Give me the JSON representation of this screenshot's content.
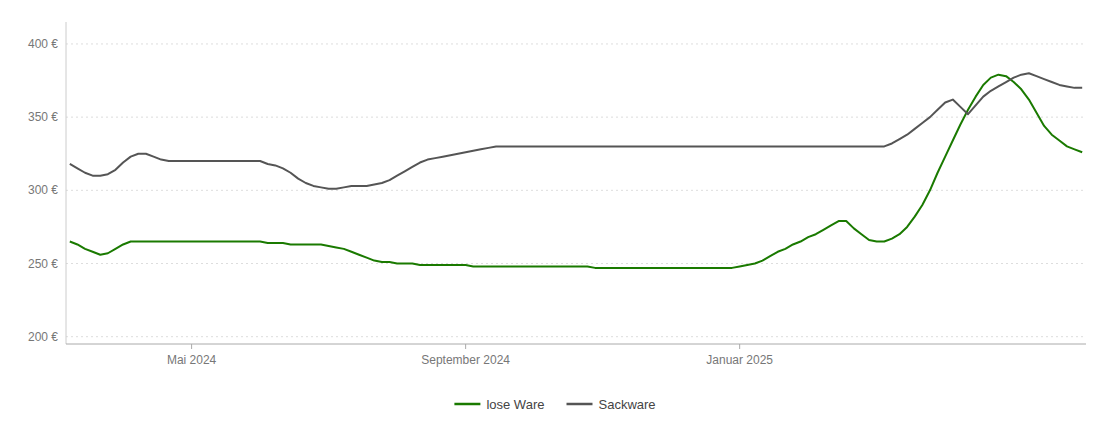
{
  "chart_data": {
    "type": "line",
    "categories": [
      null,
      null,
      null,
      null,
      null,
      null,
      null,
      null,
      null,
      null,
      null,
      null,
      null,
      null,
      null,
      null,
      "Mai 2024",
      null,
      null,
      null,
      null,
      null,
      null,
      null,
      null,
      null,
      null,
      null,
      null,
      null,
      null,
      null,
      null,
      null,
      null,
      null,
      null,
      null,
      null,
      null,
      null,
      null,
      null,
      null,
      null,
      null,
      null,
      null,
      null,
      null,
      null,
      null,
      "September 2024",
      null,
      null,
      null,
      null,
      null,
      null,
      null,
      null,
      null,
      null,
      null,
      null,
      null,
      null,
      null,
      null,
      null,
      null,
      null,
      null,
      null,
      null,
      null,
      null,
      null,
      null,
      null,
      null,
      null,
      null,
      null,
      null,
      null,
      null,
      null,
      "Januar 2025",
      null,
      null,
      null,
      null,
      null,
      null,
      null,
      null,
      null,
      null,
      null,
      null,
      null,
      null,
      null,
      null,
      null,
      null,
      null,
      null,
      null,
      null,
      null,
      null,
      null,
      null,
      null,
      null,
      null,
      null,
      null,
      null,
      null,
      null,
      null,
      null,
      null,
      null,
      null,
      null,
      null,
      null,
      null,
      null,
      null
    ],
    "series": [
      {
        "name": "lose Ware",
        "color": "#1a7a00",
        "values": [
          265,
          263,
          260,
          258,
          256,
          257,
          260,
          263,
          265,
          265,
          265,
          265,
          265,
          265,
          265,
          265,
          265,
          265,
          265,
          265,
          265,
          265,
          265,
          265,
          265,
          265,
          264,
          264,
          264,
          263,
          263,
          263,
          263,
          263,
          262,
          261,
          260,
          258,
          256,
          254,
          252,
          251,
          251,
          250,
          250,
          250,
          249,
          249,
          249,
          249,
          249,
          249,
          249,
          248,
          248,
          248,
          248,
          248,
          248,
          248,
          248,
          248,
          248,
          248,
          248,
          248,
          248,
          248,
          248,
          247,
          247,
          247,
          247,
          247,
          247,
          247,
          247,
          247,
          247,
          247,
          247,
          247,
          247,
          247,
          247,
          247,
          247,
          247,
          248,
          249,
          250,
          252,
          255,
          258,
          260,
          263,
          265,
          268,
          270,
          273,
          276,
          279,
          279,
          274,
          270,
          266,
          265,
          265,
          267,
          270,
          275,
          282,
          290,
          300,
          312,
          323,
          334,
          345,
          355,
          364,
          372,
          377,
          379,
          378,
          374,
          369,
          362,
          353,
          344,
          338,
          334,
          330,
          328,
          326
        ]
      },
      {
        "name": "Sackware",
        "color": "#555555",
        "values": [
          318,
          315,
          312,
          310,
          310,
          311,
          314,
          319,
          323,
          325,
          325,
          323,
          321,
          320,
          320,
          320,
          320,
          320,
          320,
          320,
          320,
          320,
          320,
          320,
          320,
          320,
          318,
          317,
          315,
          312,
          308,
          305,
          303,
          302,
          301,
          301,
          302,
          303,
          303,
          303,
          304,
          305,
          307,
          310,
          313,
          316,
          319,
          321,
          322,
          323,
          324,
          325,
          326,
          327,
          328,
          329,
          330,
          330,
          330,
          330,
          330,
          330,
          330,
          330,
          330,
          330,
          330,
          330,
          330,
          330,
          330,
          330,
          330,
          330,
          330,
          330,
          330,
          330,
          330,
          330,
          330,
          330,
          330,
          330,
          330,
          330,
          330,
          330,
          330,
          330,
          330,
          330,
          330,
          330,
          330,
          330,
          330,
          330,
          330,
          330,
          330,
          330,
          330,
          330,
          330,
          330,
          330,
          330,
          332,
          335,
          338,
          342,
          346,
          350,
          355,
          360,
          362,
          357,
          352,
          358,
          364,
          368,
          371,
          374,
          377,
          379,
          380,
          378,
          376,
          374,
          372,
          371,
          370,
          370
        ]
      }
    ],
    "ylim": [
      195,
      415
    ],
    "yticks": [
      {
        "value": 200,
        "label": "200 €"
      },
      {
        "value": 250,
        "label": "250 €"
      },
      {
        "value": 300,
        "label": "300 €"
      },
      {
        "value": 350,
        "label": "350 €"
      },
      {
        "value": 400,
        "label": "400 €"
      }
    ],
    "grid": true,
    "legend": "bottom"
  }
}
